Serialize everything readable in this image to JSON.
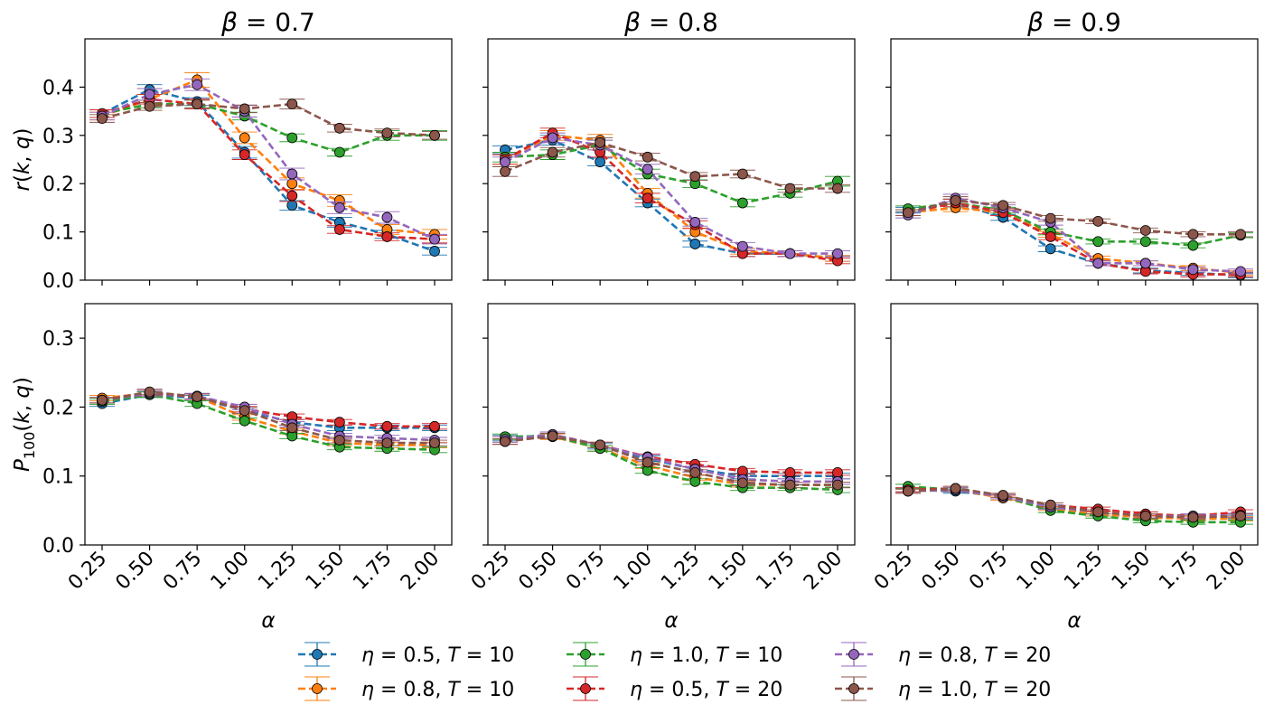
{
  "colors": {
    "s1": "#1f77b4",
    "s2": "#ff7f0e",
    "s3": "#2ca02c",
    "s4": "#d62728",
    "s5": "#9467bd",
    "s6": "#8c564b"
  },
  "chart_data": {
    "type": "line",
    "layout": "2x3 grid, shared x axis per column, shared y axis per row",
    "x": [
      0.25,
      0.5,
      0.75,
      1.0,
      1.25,
      1.5,
      1.75,
      2.0
    ],
    "x_tick_labels": [
      "0.25",
      "0.50",
      "0.75",
      "1.00",
      "1.25",
      "1.50",
      "1.75",
      "2.00"
    ],
    "xlabel": "α",
    "column_titles": [
      "β = 0.7",
      "β = 0.8",
      "β = 0.9"
    ],
    "rows": [
      {
        "ylabel": "r(k, q)",
        "ylim": [
          0,
          0.5
        ],
        "y_ticks": [
          "0.0",
          "0.1",
          "0.2",
          "0.3",
          "0.4"
        ]
      },
      {
        "ylabel": "P100(k, q)",
        "ylim": [
          0,
          0.35
        ],
        "y_ticks": [
          "0.0",
          "0.1",
          "0.2",
          "0.3"
        ]
      }
    ],
    "legend": {
      "placement": "bottom-center, 3 columns",
      "entries": [
        "η = 0.5, T = 10",
        "η = 0.8, T = 10",
        "η = 1.0, T = 10",
        "η = 0.5, T = 20",
        "η = 0.8, T = 20",
        "η = 1.0, T = 20"
      ]
    },
    "series_names": [
      "η = 0.5, T = 10",
      "η = 0.8, T = 10",
      "η = 1.0, T = 10",
      "η = 0.5, T = 20",
      "η = 0.8, T = 20",
      "η = 1.0, T = 20"
    ],
    "panels": [
      {
        "row": 0,
        "col": 0,
        "title": "β = 0.7",
        "series": [
          {
            "name": "η = 0.5, T = 10",
            "values": [
              0.345,
              0.395,
              0.37,
              0.265,
              0.155,
              0.12,
              0.095,
              0.06
            ],
            "err": [
              0.008,
              0.01,
              0.008,
              0.012,
              0.01,
              0.01,
              0.008,
              0.008
            ]
          },
          {
            "name": "η = 0.8, T = 10",
            "values": [
              0.34,
              0.375,
              0.415,
              0.295,
              0.2,
              0.165,
              0.105,
              0.095
            ],
            "err": [
              0.008,
              0.01,
              0.015,
              0.012,
              0.012,
              0.012,
              0.01,
              0.01
            ]
          },
          {
            "name": "η = 1.0, T = 10",
            "values": [
              0.345,
              0.365,
              0.365,
              0.34,
              0.295,
              0.265,
              0.3,
              0.3
            ],
            "err": [
              0.008,
              0.008,
              0.008,
              0.008,
              0.008,
              0.008,
              0.01,
              0.01
            ]
          },
          {
            "name": "η = 0.5, T = 20",
            "values": [
              0.345,
              0.375,
              0.365,
              0.26,
              0.175,
              0.105,
              0.09,
              0.085
            ],
            "err": [
              0.008,
              0.01,
              0.01,
              0.01,
              0.012,
              0.008,
              0.008,
              0.008
            ]
          },
          {
            "name": "η = 0.8, T = 20",
            "values": [
              0.34,
              0.385,
              0.405,
              0.35,
              0.22,
              0.15,
              0.13,
              0.085
            ],
            "err": [
              0.008,
              0.012,
              0.012,
              0.012,
              0.012,
              0.012,
              0.012,
              0.01
            ]
          },
          {
            "name": "η = 1.0, T = 20",
            "values": [
              0.335,
              0.36,
              0.365,
              0.355,
              0.365,
              0.315,
              0.305,
              0.3
            ],
            "err": [
              0.008,
              0.008,
              0.008,
              0.008,
              0.01,
              0.008,
              0.008,
              0.008
            ]
          }
        ]
      },
      {
        "row": 0,
        "col": 1,
        "title": "β = 0.8",
        "series": [
          {
            "name": "η = 0.5, T = 10",
            "values": [
              0.27,
              0.29,
              0.245,
              0.16,
              0.075,
              0.055,
              0.055,
              0.045
            ],
            "err": [
              0.008,
              0.01,
              0.008,
              0.008,
              0.006,
              0.006,
              0.006,
              0.006
            ]
          },
          {
            "name": "η = 0.8, T = 10",
            "values": [
              0.25,
              0.3,
              0.29,
              0.18,
              0.1,
              0.06,
              0.055,
              0.045
            ],
            "err": [
              0.01,
              0.01,
              0.012,
              0.01,
              0.008,
              0.006,
              0.006,
              0.006
            ]
          },
          {
            "name": "η = 1.0, T = 10",
            "values": [
              0.255,
              0.26,
              0.28,
              0.22,
              0.2,
              0.16,
              0.18,
              0.205
            ],
            "err": [
              0.01,
              0.01,
              0.01,
              0.01,
              0.008,
              0.008,
              0.008,
              0.01
            ]
          },
          {
            "name": "η = 0.5, T = 20",
            "values": [
              0.25,
              0.305,
              0.265,
              0.17,
              0.115,
              0.055,
              0.055,
              0.04
            ],
            "err": [
              0.01,
              0.01,
              0.01,
              0.01,
              0.008,
              0.006,
              0.006,
              0.006
            ]
          },
          {
            "name": "η = 0.8, T = 20",
            "values": [
              0.245,
              0.295,
              0.28,
              0.23,
              0.12,
              0.07,
              0.055,
              0.055
            ],
            "err": [
              0.01,
              0.01,
              0.01,
              0.01,
              0.008,
              0.008,
              0.006,
              0.006
            ]
          },
          {
            "name": "η = 1.0, T = 20",
            "values": [
              0.225,
              0.265,
              0.285,
              0.255,
              0.215,
              0.22,
              0.19,
              0.19
            ],
            "err": [
              0.01,
              0.01,
              0.01,
              0.008,
              0.008,
              0.008,
              0.008,
              0.008
            ]
          }
        ]
      },
      {
        "row": 0,
        "col": 2,
        "title": "β = 0.9",
        "series": [
          {
            "name": "η = 0.5, T = 10",
            "values": [
              0.145,
              0.16,
              0.13,
              0.065,
              0.035,
              0.02,
              0.015,
              0.01
            ],
            "err": [
              0.006,
              0.008,
              0.006,
              0.006,
              0.005,
              0.005,
              0.005,
              0.005
            ]
          },
          {
            "name": "η = 0.8, T = 10",
            "values": [
              0.14,
              0.15,
              0.14,
              0.095,
              0.045,
              0.035,
              0.025,
              0.015
            ],
            "err": [
              0.006,
              0.008,
              0.006,
              0.006,
              0.005,
              0.005,
              0.005,
              0.005
            ]
          },
          {
            "name": "η = 1.0, T = 10",
            "values": [
              0.148,
              0.16,
              0.145,
              0.1,
              0.08,
              0.08,
              0.072,
              0.093
            ],
            "err": [
              0.006,
              0.008,
              0.006,
              0.006,
              0.005,
              0.005,
              0.005,
              0.005
            ]
          },
          {
            "name": "η = 0.5, T = 20",
            "values": [
              0.14,
              0.16,
              0.14,
              0.09,
              0.035,
              0.018,
              0.012,
              0.012
            ],
            "err": [
              0.006,
              0.008,
              0.006,
              0.006,
              0.005,
              0.005,
              0.005,
              0.005
            ]
          },
          {
            "name": "η = 0.8, T = 20",
            "values": [
              0.135,
              0.17,
              0.15,
              0.12,
              0.035,
              0.035,
              0.022,
              0.018
            ],
            "err": [
              0.006,
              0.008,
              0.006,
              0.006,
              0.005,
              0.005,
              0.005,
              0.005
            ]
          },
          {
            "name": "η = 1.0, T = 20",
            "values": [
              0.14,
              0.165,
              0.155,
              0.128,
              0.122,
              0.103,
              0.095,
              0.095
            ],
            "err": [
              0.006,
              0.008,
              0.006,
              0.006,
              0.005,
              0.005,
              0.005,
              0.005
            ]
          }
        ]
      },
      {
        "row": 1,
        "col": 0,
        "title": "",
        "series": [
          {
            "name": "η = 0.5, T = 10",
            "values": [
              0.205,
              0.218,
              0.213,
              0.195,
              0.178,
              0.17,
              0.17,
              0.17
            ],
            "err": [
              0.004,
              0.004,
              0.004,
              0.004,
              0.004,
              0.004,
              0.004,
              0.004
            ]
          },
          {
            "name": "η = 0.8, T = 10",
            "values": [
              0.213,
              0.22,
              0.215,
              0.185,
              0.165,
              0.148,
              0.145,
              0.145
            ],
            "err": [
              0.004,
              0.004,
              0.004,
              0.004,
              0.004,
              0.004,
              0.004,
              0.004
            ]
          },
          {
            "name": "η = 1.0, T = 10",
            "values": [
              0.208,
              0.218,
              0.205,
              0.18,
              0.158,
              0.142,
              0.14,
              0.138
            ],
            "err": [
              0.004,
              0.004,
              0.004,
              0.004,
              0.004,
              0.004,
              0.004,
              0.004
            ]
          },
          {
            "name": "η = 0.5, T = 20",
            "values": [
              0.21,
              0.22,
              0.215,
              0.197,
              0.186,
              0.178,
              0.172,
              0.172
            ],
            "err": [
              0.004,
              0.004,
              0.004,
              0.004,
              0.004,
              0.004,
              0.004,
              0.004
            ]
          },
          {
            "name": "η = 0.8, T = 20",
            "values": [
              0.21,
              0.22,
              0.216,
              0.2,
              0.175,
              0.158,
              0.155,
              0.152
            ],
            "err": [
              0.004,
              0.004,
              0.004,
              0.004,
              0.004,
              0.004,
              0.004,
              0.004
            ]
          },
          {
            "name": "η = 1.0, T = 20",
            "values": [
              0.21,
              0.222,
              0.215,
              0.195,
              0.17,
              0.152,
              0.148,
              0.148
            ],
            "err": [
              0.004,
              0.004,
              0.004,
              0.004,
              0.004,
              0.004,
              0.004,
              0.004
            ]
          }
        ]
      },
      {
        "row": 1,
        "col": 1,
        "title": "",
        "series": [
          {
            "name": "η = 0.5, T = 10",
            "values": [
              0.155,
              0.16,
              0.143,
              0.125,
              0.11,
              0.1,
              0.1,
              0.1
            ],
            "err": [
              0.004,
              0.004,
              0.004,
              0.004,
              0.004,
              0.004,
              0.004,
              0.004
            ]
          },
          {
            "name": "η = 0.8, T = 10",
            "values": [
              0.153,
              0.157,
              0.14,
              0.115,
              0.098,
              0.088,
              0.087,
              0.087
            ],
            "err": [
              0.004,
              0.004,
              0.004,
              0.004,
              0.004,
              0.004,
              0.004,
              0.004
            ]
          },
          {
            "name": "η = 1.0, T = 10",
            "values": [
              0.157,
              0.158,
              0.14,
              0.108,
              0.092,
              0.083,
              0.083,
              0.08
            ],
            "err": [
              0.004,
              0.004,
              0.004,
              0.004,
              0.004,
              0.004,
              0.004,
              0.004
            ]
          },
          {
            "name": "η = 0.5, T = 20",
            "values": [
              0.15,
              0.16,
              0.145,
              0.128,
              0.117,
              0.107,
              0.105,
              0.105
            ],
            "err": [
              0.004,
              0.004,
              0.004,
              0.004,
              0.004,
              0.004,
              0.004,
              0.004
            ]
          },
          {
            "name": "η = 0.8, T = 20",
            "values": [
              0.153,
              0.16,
              0.145,
              0.127,
              0.11,
              0.095,
              0.092,
              0.092
            ],
            "err": [
              0.004,
              0.004,
              0.004,
              0.004,
              0.004,
              0.004,
              0.004,
              0.004
            ]
          },
          {
            "name": "η = 1.0, T = 20",
            "values": [
              0.15,
              0.158,
              0.145,
              0.12,
              0.105,
              0.09,
              0.087,
              0.087
            ],
            "err": [
              0.004,
              0.004,
              0.004,
              0.004,
              0.004,
              0.004,
              0.004,
              0.004
            ]
          }
        ]
      },
      {
        "row": 1,
        "col": 2,
        "title": "",
        "series": [
          {
            "name": "η = 0.5, T = 10",
            "values": [
              0.08,
              0.078,
              0.07,
              0.055,
              0.045,
              0.04,
              0.04,
              0.04
            ],
            "err": [
              0.003,
              0.003,
              0.003,
              0.003,
              0.003,
              0.003,
              0.003,
              0.003
            ]
          },
          {
            "name": "η = 0.8, T = 10",
            "values": [
              0.078,
              0.08,
              0.068,
              0.053,
              0.045,
              0.04,
              0.038,
              0.038
            ],
            "err": [
              0.003,
              0.003,
              0.003,
              0.003,
              0.003,
              0.003,
              0.003,
              0.003
            ]
          },
          {
            "name": "η = 1.0, T = 10",
            "values": [
              0.085,
              0.08,
              0.07,
              0.05,
              0.042,
              0.035,
              0.033,
              0.033
            ],
            "err": [
              0.003,
              0.003,
              0.003,
              0.003,
              0.003,
              0.003,
              0.003,
              0.003
            ]
          },
          {
            "name": "η = 0.5, T = 20",
            "values": [
              0.08,
              0.082,
              0.07,
              0.058,
              0.052,
              0.045,
              0.042,
              0.048
            ],
            "err": [
              0.003,
              0.003,
              0.003,
              0.003,
              0.003,
              0.003,
              0.003,
              0.003
            ]
          },
          {
            "name": "η = 0.8, T = 20",
            "values": [
              0.078,
              0.08,
              0.07,
              0.055,
              0.048,
              0.042,
              0.042,
              0.043
            ],
            "err": [
              0.003,
              0.003,
              0.003,
              0.003,
              0.003,
              0.003,
              0.003,
              0.003
            ]
          },
          {
            "name": "η = 1.0, T = 20",
            "values": [
              0.078,
              0.082,
              0.072,
              0.058,
              0.048,
              0.042,
              0.04,
              0.042
            ],
            "err": [
              0.003,
              0.003,
              0.003,
              0.003,
              0.003,
              0.003,
              0.003,
              0.003
            ]
          }
        ]
      }
    ]
  }
}
